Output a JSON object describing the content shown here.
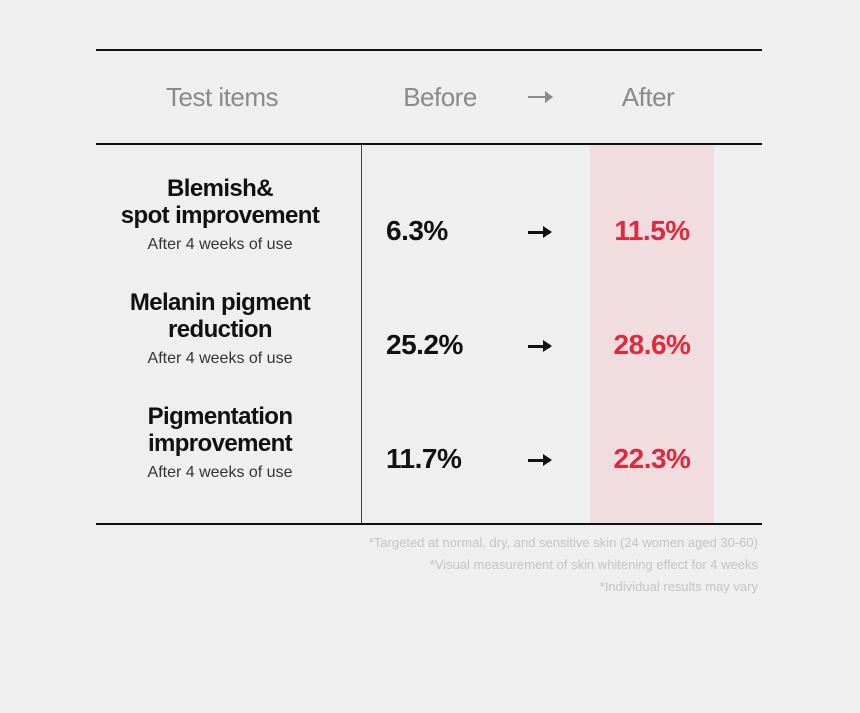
{
  "header": {
    "items": "Test items",
    "before": "Before",
    "after": "After"
  },
  "rows": [
    {
      "name_line1": "Blemish&",
      "name_line2": "spot improvement",
      "sub": "After 4 weeks of use",
      "before": "6.3%",
      "after": "11.5%"
    },
    {
      "name_line1": "Melanin pigment",
      "name_line2": "reduction",
      "sub": "After 4 weeks of use",
      "before": "25.2%",
      "after": "28.6%"
    },
    {
      "name_line1": "Pigmentation",
      "name_line2": "improvement",
      "sub": "After 4 weeks of use",
      "before": "11.7%",
      "after": "22.3%"
    }
  ],
  "notes": [
    "*Targeted at normal, dry, and sensitive skin (24 women aged 30-60)",
    "*Visual measurement of skin whitening effect for 4 weeks",
    "*Individual results may vary"
  ],
  "colors": {
    "accent": "#e0293b",
    "after_column_bg": "#f1dde0",
    "background": "#efefef"
  }
}
